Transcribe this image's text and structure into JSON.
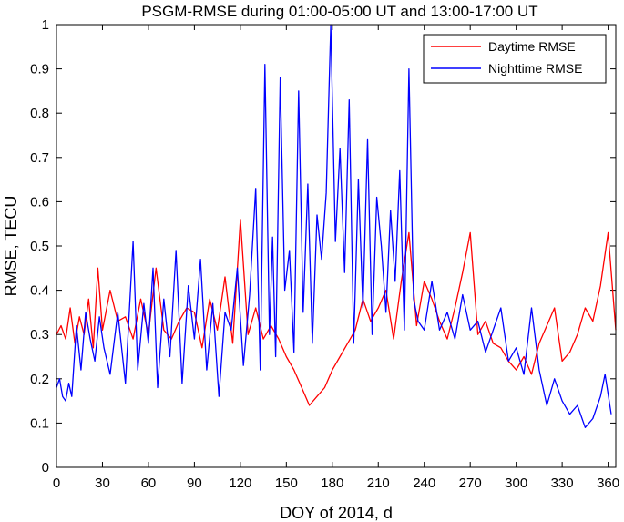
{
  "chart_data": {
    "type": "line",
    "title": "PSGM-RMSE during 01:00-05:00 UT and 13:00-17:00 UT",
    "xlabel": "DOY of 2014, d",
    "ylabel": "RMSE, TECU",
    "xlim": [
      0,
      365
    ],
    "ylim": [
      0,
      1
    ],
    "xticks": [
      0,
      30,
      60,
      90,
      120,
      150,
      180,
      210,
      240,
      270,
      300,
      330,
      360
    ],
    "yticks": [
      0,
      0.1,
      0.2,
      0.3,
      0.4,
      0.5,
      0.6,
      0.7,
      0.8,
      0.9,
      1
    ],
    "ytick_labels": [
      "0",
      "0.1",
      "0.2",
      "0.3",
      "0.4",
      "0.5",
      "0.6",
      "0.7",
      "0.8",
      "0.9",
      "1"
    ],
    "legend_position": "top-right",
    "series": [
      {
        "name": "Daytime RMSE",
        "color": "#ff0000",
        "x": [
          0,
          3,
          6,
          9,
          12,
          15,
          18,
          21,
          24,
          27,
          30,
          35,
          40,
          45,
          50,
          55,
          60,
          65,
          70,
          75,
          80,
          85,
          90,
          95,
          100,
          105,
          110,
          115,
          120,
          125,
          130,
          135,
          140,
          145,
          150,
          155,
          160,
          165,
          170,
          175,
          180,
          185,
          190,
          195,
          200,
          205,
          210,
          215,
          220,
          225,
          230,
          235,
          240,
          245,
          250,
          255,
          260,
          265,
          270,
          275,
          280,
          285,
          290,
          295,
          300,
          305,
          310,
          315,
          320,
          325,
          330,
          335,
          340,
          345,
          350,
          355,
          360,
          365
        ],
        "values": [
          0.3,
          0.32,
          0.29,
          0.36,
          0.28,
          0.34,
          0.3,
          0.38,
          0.27,
          0.45,
          0.31,
          0.4,
          0.33,
          0.34,
          0.29,
          0.38,
          0.3,
          0.45,
          0.31,
          0.29,
          0.33,
          0.36,
          0.35,
          0.27,
          0.38,
          0.31,
          0.43,
          0.28,
          0.56,
          0.3,
          0.36,
          0.29,
          0.32,
          0.29,
          0.25,
          0.22,
          0.18,
          0.14,
          0.16,
          0.18,
          0.22,
          0.25,
          0.28,
          0.31,
          0.38,
          0.33,
          0.36,
          0.4,
          0.29,
          0.42,
          0.53,
          0.32,
          0.42,
          0.38,
          0.33,
          0.29,
          0.36,
          0.44,
          0.53,
          0.3,
          0.33,
          0.28,
          0.27,
          0.24,
          0.22,
          0.25,
          0.21,
          0.28,
          0.32,
          0.36,
          0.24,
          0.26,
          0.3,
          0.36,
          0.33,
          0.41,
          0.53,
          0.31
        ]
      },
      {
        "name": "Nighttime RMSE",
        "color": "#0000ff",
        "x": [
          0,
          2,
          4,
          6,
          8,
          10,
          13,
          16,
          19,
          22,
          25,
          28,
          31,
          35,
          40,
          45,
          50,
          53,
          57,
          60,
          63,
          66,
          70,
          74,
          78,
          82,
          86,
          90,
          94,
          98,
          102,
          106,
          110,
          114,
          118,
          122,
          126,
          130,
          133,
          136,
          139,
          141,
          143,
          146,
          149,
          152,
          155,
          158,
          161,
          164,
          167,
          170,
          173,
          176,
          179,
          182,
          185,
          188,
          191,
          194,
          197,
          200,
          203,
          206,
          209,
          212,
          215,
          218,
          221,
          224,
          227,
          230,
          233,
          236,
          240,
          245,
          250,
          255,
          260,
          265,
          270,
          275,
          280,
          285,
          290,
          295,
          300,
          305,
          310,
          315,
          320,
          325,
          330,
          335,
          340,
          345,
          350,
          355,
          358,
          362
        ],
        "values": [
          0.18,
          0.2,
          0.16,
          0.15,
          0.19,
          0.16,
          0.32,
          0.22,
          0.35,
          0.29,
          0.24,
          0.34,
          0.27,
          0.21,
          0.35,
          0.19,
          0.51,
          0.22,
          0.37,
          0.28,
          0.45,
          0.18,
          0.38,
          0.25,
          0.49,
          0.19,
          0.41,
          0.29,
          0.47,
          0.22,
          0.37,
          0.16,
          0.35,
          0.31,
          0.45,
          0.23,
          0.39,
          0.63,
          0.22,
          0.91,
          0.3,
          0.52,
          0.25,
          0.88,
          0.4,
          0.49,
          0.26,
          0.85,
          0.35,
          0.64,
          0.28,
          0.57,
          0.47,
          0.62,
          1.0,
          0.51,
          0.72,
          0.44,
          0.83,
          0.28,
          0.65,
          0.36,
          0.74,
          0.3,
          0.61,
          0.5,
          0.35,
          0.58,
          0.42,
          0.67,
          0.31,
          0.9,
          0.38,
          0.33,
          0.31,
          0.42,
          0.31,
          0.35,
          0.29,
          0.39,
          0.31,
          0.33,
          0.26,
          0.31,
          0.36,
          0.24,
          0.27,
          0.21,
          0.36,
          0.22,
          0.14,
          0.2,
          0.15,
          0.12,
          0.14,
          0.09,
          0.11,
          0.16,
          0.21,
          0.12
        ]
      }
    ]
  }
}
